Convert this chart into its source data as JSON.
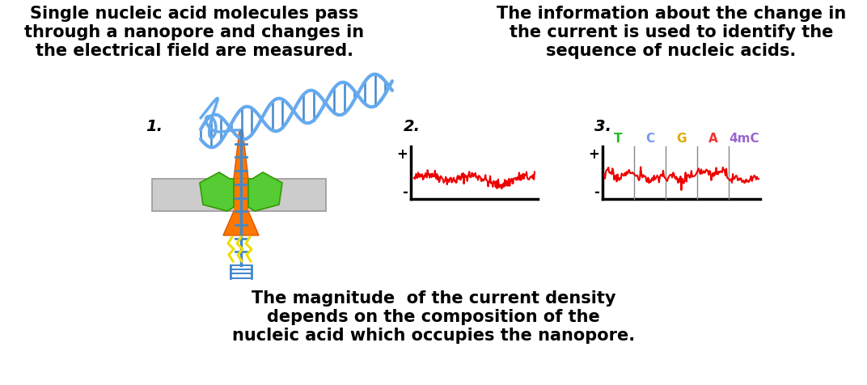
{
  "bg_color": "#ffffff",
  "top_left_text": "Single nucleic acid molecules pass\nthrough a nanopore and changes in\nthe electrical field are measured.",
  "top_right_text": "The information about the change in\nthe current is used to identify the\nsequence of nucleic acids.",
  "bottom_text": "The magnitude  of the current density\ndepends on the composition of the\nnucleic acid which occupies the nanopore.",
  "label1": "1.",
  "label2": "2.",
  "label3": "3.",
  "nucleotide_labels": [
    "T",
    "C",
    "G",
    "A",
    "4mC"
  ],
  "nucleotide_colors": [
    "#22bb22",
    "#7799ee",
    "#ddaa00",
    "#ee3333",
    "#9966cc"
  ],
  "signal_color": "#ee0000",
  "axis_color": "#000000",
  "dna_color": "#66aaee",
  "dna_bar_color": "#4488cc",
  "pore_orange": "#ff7700",
  "pore_orange_dark": "#dd5500",
  "green_protein": "#55cc33",
  "green_protein_dark": "#339900",
  "lightning_color": "#eedd00",
  "ruler_color": "#4488cc",
  "membrane_color": "#cccccc",
  "membrane_edge": "#999999"
}
